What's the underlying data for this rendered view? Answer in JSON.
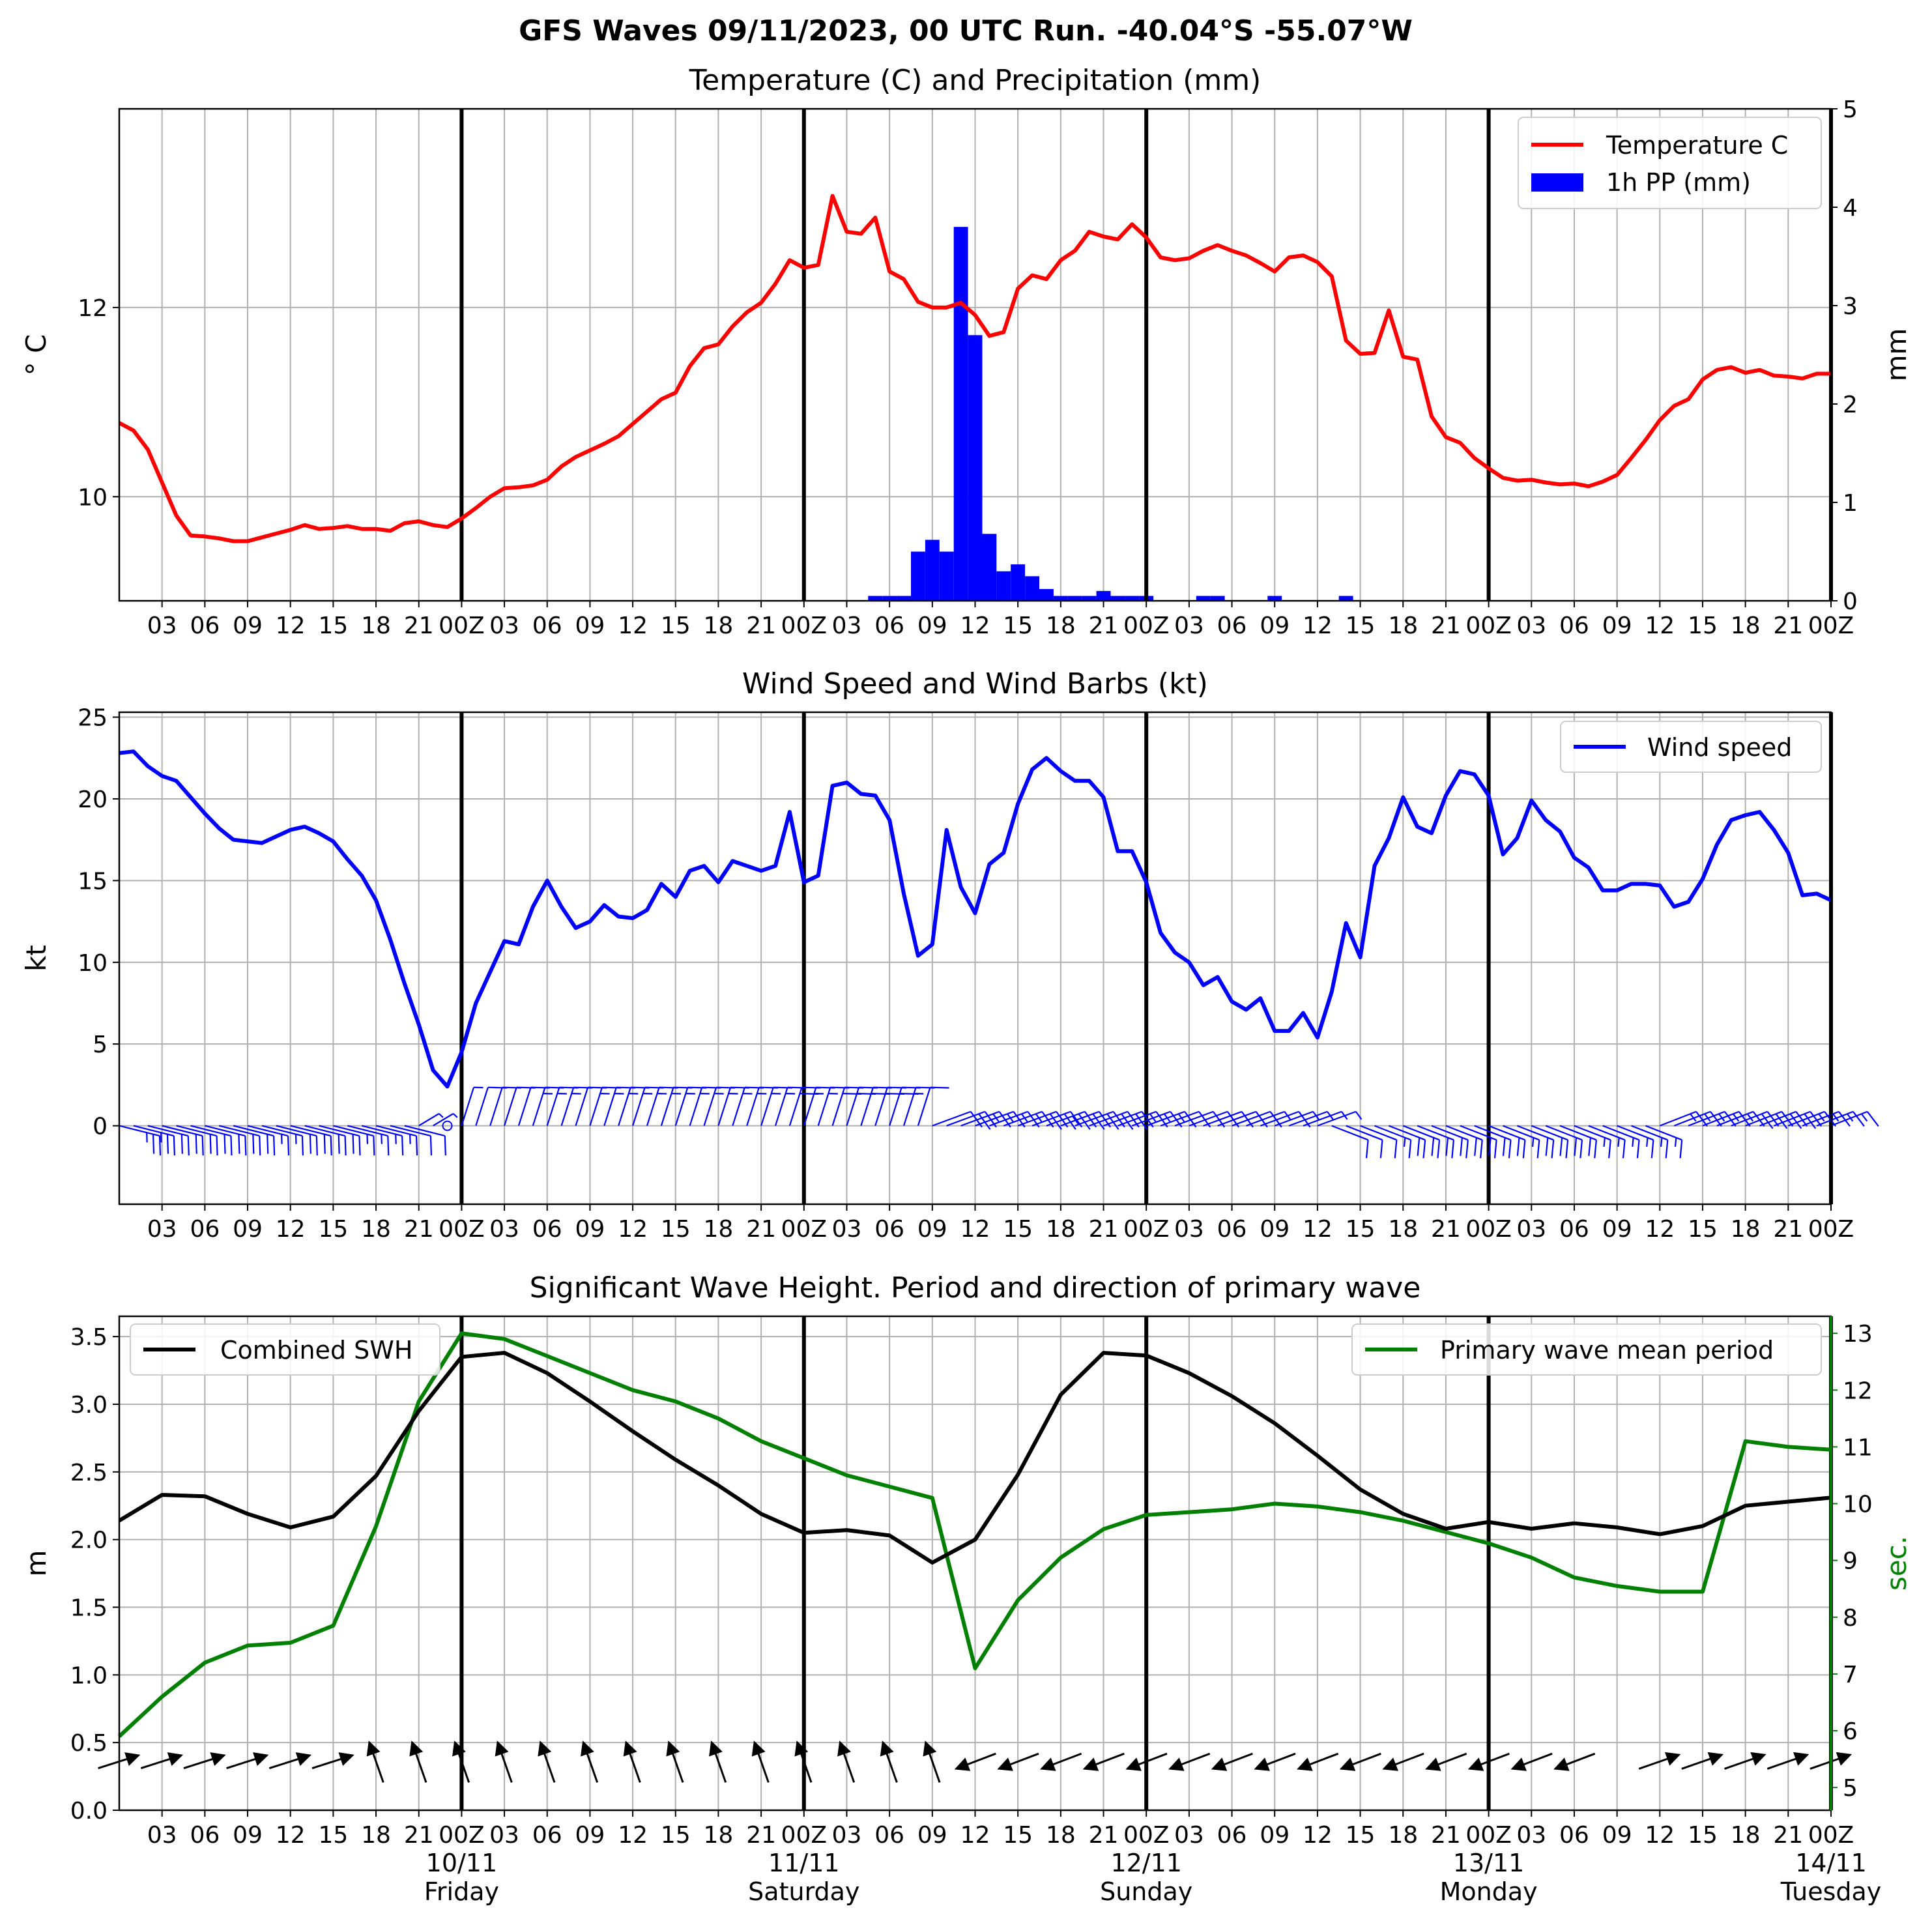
{
  "suptitle": "GFS Waves 09/11/2023, 00 UTC Run. -40.04°S -55.07°W",
  "time_axis": {
    "unit": "hours from 2023-11-09 00Z",
    "range": [
      0,
      120
    ],
    "tick_labels": [
      "03",
      "06",
      "09",
      "12",
      "15",
      "18",
      "21",
      "00Z",
      "03",
      "06",
      "09",
      "12",
      "15",
      "18",
      "21",
      "00Z",
      "03",
      "06",
      "09",
      "12",
      "15",
      "18",
      "21",
      "00Z",
      "03",
      "06",
      "09",
      "12",
      "15",
      "18",
      "21",
      "00Z",
      "03",
      "06",
      "09",
      "12",
      "15",
      "18",
      "21",
      "00Z"
    ],
    "day_labels": [
      {
        "date": "10/11",
        "day": "Friday"
      },
      {
        "date": "11/11",
        "day": "Saturday"
      },
      {
        "date": "12/11",
        "day": "Sunday"
      },
      {
        "date": "13/11",
        "day": "Monday"
      },
      {
        "date": "14/11",
        "day": "Tuesday"
      }
    ],
    "day_boundaries": [
      24,
      48,
      72,
      96,
      120
    ]
  },
  "colors": {
    "temperature": "#ff0000",
    "precip": "#0000ff",
    "wind": "#0000ff",
    "swh": "#000000",
    "period": "#008000",
    "grid": "#b0b0b0"
  },
  "chart_data": [
    {
      "type": "line",
      "title": "Temperature (C) and Precipitation (mm)",
      "ylabel": "° C",
      "y2label": "mm",
      "ylim": [
        8.9,
        14.1
      ],
      "yticks": [
        "10",
        "12"
      ],
      "y2lim": [
        0,
        5
      ],
      "y2ticks": [
        "0",
        "1",
        "2",
        "3",
        "4",
        "5"
      ],
      "legend_position": "top-right",
      "series": [
        {
          "name": "Temperature C",
          "x": [
            0,
            1,
            2,
            3,
            4,
            5,
            6,
            7,
            8,
            9,
            10,
            11,
            12,
            13,
            14,
            15,
            16,
            17,
            18,
            19,
            20,
            21,
            22,
            23,
            24,
            25,
            26,
            27,
            28,
            29,
            30,
            31,
            32,
            33,
            34,
            35,
            36,
            37,
            38,
            39,
            40,
            41,
            42,
            43,
            44,
            45,
            46,
            47,
            48,
            49,
            50,
            51,
            52,
            53,
            54,
            55,
            56,
            57,
            58,
            59,
            60,
            61,
            62,
            63,
            64,
            65,
            66,
            67,
            68,
            69,
            70,
            71,
            72,
            73,
            74,
            75,
            76,
            77,
            78,
            79,
            80,
            81,
            82,
            83,
            84,
            85,
            86,
            87,
            88,
            89,
            90,
            91,
            92,
            93,
            94,
            95,
            96,
            97,
            98,
            99,
            100,
            101,
            102,
            103,
            104,
            105,
            106,
            107,
            108,
            109,
            110,
            111,
            112,
            113,
            114,
            115,
            116,
            117,
            118,
            119,
            120
          ],
          "values": [
            10.78,
            10.7,
            10.5,
            10.15,
            9.8,
            9.59,
            9.58,
            9.56,
            9.53,
            9.53,
            9.57,
            9.61,
            9.65,
            9.7,
            9.66,
            9.67,
            9.69,
            9.66,
            9.66,
            9.64,
            9.72,
            9.74,
            9.7,
            9.68,
            9.77,
            9.88,
            10.0,
            10.09,
            10.1,
            10.12,
            10.18,
            10.32,
            10.42,
            10.49,
            10.56,
            10.64,
            10.77,
            10.9,
            11.03,
            11.1,
            11.38,
            11.57,
            11.61,
            11.8,
            11.95,
            12.05,
            12.25,
            12.5,
            12.42,
            12.45,
            13.18,
            12.8,
            12.78,
            12.95,
            12.38,
            12.3,
            12.06,
            12.0,
            12.0,
            12.05,
            11.92,
            11.7,
            11.74,
            12.2,
            12.34,
            12.3,
            12.5,
            12.6,
            12.8,
            12.75,
            12.72,
            12.88,
            12.74,
            12.53,
            12.5,
            12.52,
            12.6,
            12.66,
            12.6,
            12.55,
            12.47,
            12.38,
            12.53,
            12.55,
            12.48,
            12.33,
            11.65,
            11.51,
            11.52,
            11.97,
            11.48,
            11.45,
            10.85,
            10.63,
            10.57,
            10.41,
            10.3,
            10.2,
            10.17,
            10.18,
            10.15,
            10.13,
            10.14,
            10.11,
            10.16,
            10.23,
            10.41,
            10.6,
            10.81,
            10.96,
            11.03,
            11.24,
            11.34,
            11.37,
            11.31,
            11.34,
            11.28,
            11.27,
            11.25,
            11.3,
            11.3
          ]
        },
        {
          "name": "1h PP (mm)",
          "type": "bar",
          "bar_width_hours": 1,
          "x": [
            53,
            54,
            55,
            56,
            57,
            58,
            59,
            60,
            61,
            62,
            63,
            64,
            65,
            66,
            67,
            68,
            69,
            70,
            71,
            72,
            76,
            77,
            81,
            86
          ],
          "values": [
            0.05,
            0.05,
            0.05,
            0.5,
            0.62,
            0.5,
            3.8,
            2.7,
            0.68,
            0.3,
            0.37,
            0.25,
            0.12,
            0.05,
            0.05,
            0.05,
            0.1,
            0.05,
            0.05,
            0.05,
            0.05,
            0.05,
            0.05,
            0.05
          ]
        }
      ]
    },
    {
      "type": "line",
      "title": "Wind Speed and Wind Barbs (kt)",
      "ylabel": "kt",
      "ylim": [
        -4.8,
        25.3
      ],
      "yticks": [
        "0",
        "5",
        "10",
        "15",
        "20",
        "25"
      ],
      "legend_position": "top-right",
      "series": [
        {
          "name": "Wind speed",
          "x": [
            0,
            1,
            2,
            3,
            4,
            5,
            6,
            7,
            8,
            9,
            10,
            11,
            12,
            13,
            14,
            15,
            16,
            17,
            18,
            19,
            20,
            21,
            22,
            23,
            24,
            25,
            26,
            27,
            28,
            29,
            30,
            31,
            32,
            33,
            34,
            35,
            36,
            37,
            38,
            39,
            40,
            41,
            42,
            43,
            44,
            45,
            46,
            47,
            48,
            49,
            50,
            51,
            52,
            53,
            54,
            55,
            56,
            57,
            58,
            59,
            60,
            61,
            62,
            63,
            64,
            65,
            66,
            67,
            68,
            69,
            70,
            71,
            72,
            73,
            74,
            75,
            76,
            77,
            78,
            79,
            80,
            81,
            82,
            83,
            84,
            85,
            86,
            87,
            88,
            89,
            90,
            91,
            92,
            93,
            94,
            95,
            96,
            97,
            98,
            99,
            100,
            101,
            102,
            103,
            104,
            105,
            106,
            107,
            108,
            109,
            110,
            111,
            112,
            113,
            114,
            115,
            116,
            117,
            118,
            119,
            120
          ],
          "values": [
            22.8,
            22.9,
            22.0,
            21.4,
            21.1,
            20.1,
            19.1,
            18.2,
            17.5,
            17.4,
            17.3,
            17.7,
            18.1,
            18.3,
            17.9,
            17.4,
            16.3,
            15.3,
            13.8,
            11.4,
            8.7,
            6.2,
            3.4,
            2.4,
            4.5,
            7.5,
            9.4,
            11.3,
            11.1,
            13.4,
            15.0,
            13.4,
            12.1,
            12.5,
            13.5,
            12.8,
            12.7,
            13.2,
            14.8,
            14.0,
            15.6,
            15.9,
            14.9,
            16.2,
            15.9,
            15.6,
            15.9,
            19.2,
            14.9,
            15.3,
            20.8,
            21.0,
            20.3,
            20.2,
            18.7,
            14.2,
            10.4,
            11.1,
            18.1,
            14.6,
            13.0,
            16.0,
            16.7,
            19.7,
            21.8,
            22.5,
            21.7,
            21.1,
            21.1,
            20.1,
            16.8,
            16.8,
            14.9,
            11.8,
            10.6,
            10.0,
            8.6,
            9.1,
            7.6,
            7.1,
            7.8,
            5.8,
            5.8,
            6.9,
            5.4,
            8.2,
            12.4,
            10.3,
            15.9,
            17.6,
            20.1,
            18.3,
            17.9,
            20.2,
            21.7,
            21.5,
            20.2,
            16.6,
            17.6,
            19.9,
            18.7,
            18.0,
            16.4,
            15.8,
            14.4,
            14.4,
            14.8,
            14.8,
            14.7,
            13.4,
            13.7,
            15.1,
            17.2,
            18.7,
            19.0,
            19.2,
            18.1,
            16.7,
            14.1,
            14.2,
            13.8
          ]
        }
      ],
      "barbs": {
        "times_every": 1,
        "groups": [
          {
            "from": 0,
            "to": 20,
            "u": 1.0,
            "v": 0.25
          },
          {
            "from": 21,
            "to": 23,
            "u": 0.5,
            "v": -0.3
          },
          {
            "from": 24,
            "to": 56,
            "u": 0.3,
            "v": -0.95
          },
          {
            "from": 57,
            "to": 84,
            "u": 0.95,
            "v": -0.35
          },
          {
            "from": 85,
            "to": 107,
            "u": 0.9,
            "v": 0.35
          },
          {
            "from": 108,
            "to": 120,
            "u": 0.9,
            "v": -0.35
          }
        ]
      }
    },
    {
      "type": "line",
      "title": "Significant Wave Height. Period and direction of primary wave",
      "ylabel": "m",
      "y2label": "sec.",
      "ylim": [
        0,
        3.65
      ],
      "yticks": [
        "0.0",
        "0.5",
        "1.0",
        "1.5",
        "2.0",
        "2.5",
        "3.0",
        "3.5"
      ],
      "y2lim": [
        4.6,
        13.3
      ],
      "y2ticks": [
        "5",
        "6",
        "7",
        "8",
        "9",
        "10",
        "11",
        "12",
        "13"
      ],
      "series": [
        {
          "name": "Combined SWH",
          "legend_position": "top-left",
          "x": [
            0,
            3,
            6,
            9,
            12,
            15,
            18,
            21,
            24,
            27,
            30,
            33,
            36,
            39,
            42,
            45,
            48,
            51,
            54,
            57,
            60,
            63,
            66,
            69,
            72,
            75,
            78,
            81,
            84,
            87,
            90,
            93,
            96,
            99,
            102,
            105,
            108,
            111,
            114,
            117,
            120
          ],
          "values": [
            2.14,
            2.33,
            2.32,
            2.19,
            2.09,
            2.17,
            2.47,
            2.95,
            3.35,
            3.38,
            3.23,
            3.02,
            2.8,
            2.59,
            2.4,
            2.19,
            2.05,
            2.07,
            2.03,
            1.83,
            2.0,
            2.48,
            3.07,
            3.38,
            3.36,
            3.23,
            3.06,
            2.86,
            2.62,
            2.37,
            2.19,
            2.08,
            2.13,
            2.08,
            2.12,
            2.09,
            2.04,
            2.1,
            2.25,
            2.28,
            2.31
          ]
        },
        {
          "name": "Primary wave mean period",
          "legend_position": "top-right",
          "x": [
            0,
            3,
            6,
            9,
            12,
            15,
            18,
            21,
            24,
            27,
            30,
            33,
            36,
            39,
            42,
            45,
            48,
            51,
            54,
            57,
            60,
            63,
            66,
            69,
            72,
            75,
            78,
            81,
            84,
            87,
            90,
            93,
            96,
            99,
            102,
            105,
            108,
            111,
            114,
            117,
            120
          ],
          "values": [
            5.9,
            6.6,
            7.2,
            7.5,
            7.55,
            7.85,
            9.6,
            11.8,
            13.0,
            12.9,
            12.6,
            12.3,
            12.0,
            11.8,
            11.5,
            11.1,
            10.8,
            10.5,
            10.3,
            10.1,
            7.1,
            8.3,
            9.05,
            9.55,
            9.8,
            9.85,
            9.9,
            10.0,
            9.95,
            9.85,
            9.7,
            9.5,
            9.3,
            9.05,
            8.7,
            8.55,
            8.45,
            8.45,
            11.1,
            11.0,
            10.95
          ]
        }
      ],
      "direction_arrows": {
        "level_m": 0.36,
        "groups": [
          {
            "times": [
              0,
              3,
              6,
              9,
              12,
              15
            ],
            "dx": 1,
            "dy": 0.32
          },
          {
            "times": [
              18,
              21,
              24,
              27,
              30,
              33,
              36,
              39,
              42,
              45,
              48,
              51,
              54,
              57
            ],
            "dx": -0.35,
            "dy": 1
          },
          {
            "times": [
              60,
              63,
              66,
              69,
              72,
              75,
              78,
              81,
              84,
              87,
              90,
              93,
              96,
              99,
              102
            ],
            "dx": -1,
            "dy": -0.38
          },
          {
            "times": [
              108,
              111,
              114,
              117,
              120
            ],
            "dx": 1,
            "dy": 0.35
          }
        ]
      }
    }
  ]
}
